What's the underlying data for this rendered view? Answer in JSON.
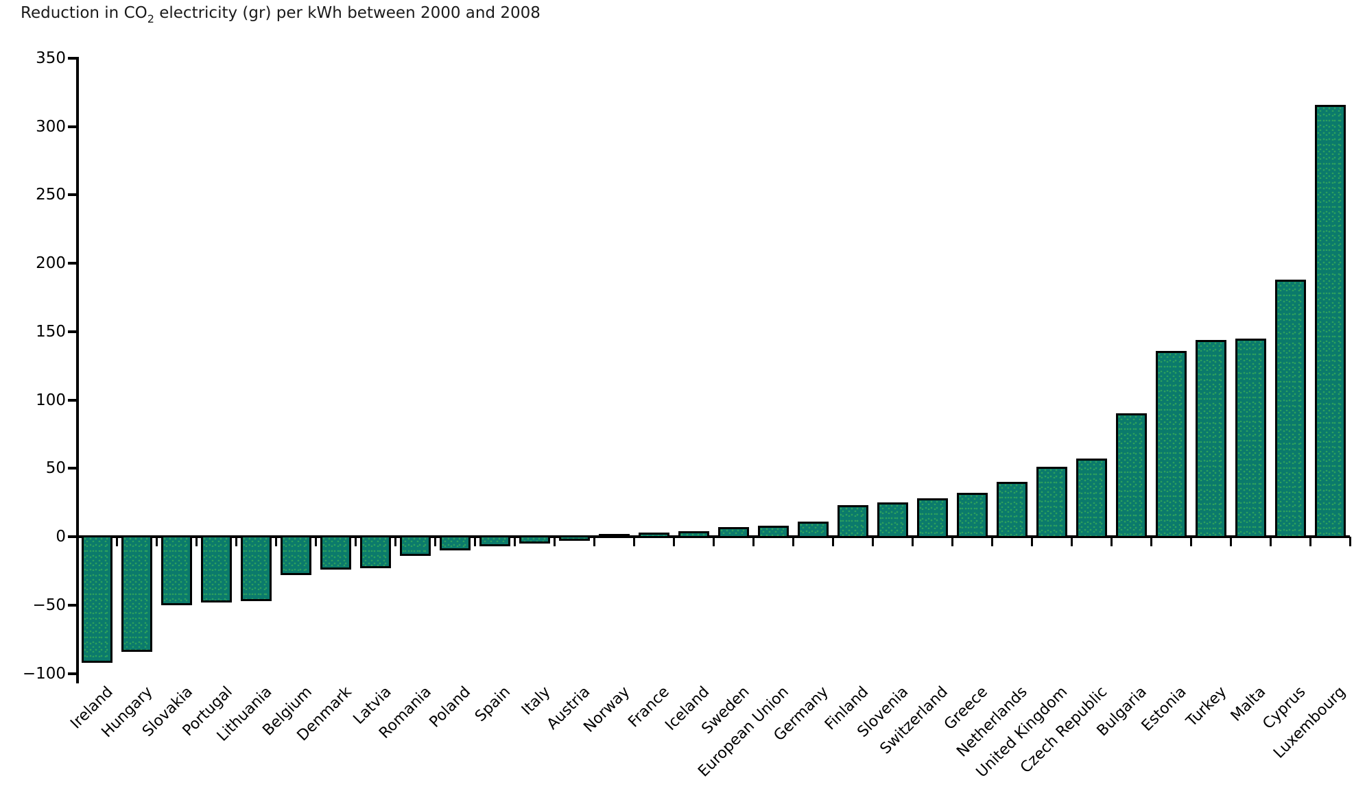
{
  "page": {
    "background": "#ffffff"
  },
  "title": {
    "pre": "Reduction in CO",
    "sub": "2",
    "post": " electricity (gr) per kWh between 2000 and 2008"
  },
  "chart_data": {
    "type": "bar",
    "title": "Reduction in CO2 electricity (gr) per kWh between 2000 and 2008",
    "categories": [
      "Ireland",
      "Hungary",
      "Slovakia",
      "Portugal",
      "Lithuania",
      "Belgium",
      "Denmark",
      "Latvia",
      "Romania",
      "Poland",
      "Spain",
      "Italy",
      "Austria",
      "Norway",
      "France",
      "Iceland",
      "Sweden",
      "European Union",
      "Germany",
      "Finland",
      "Slovenia",
      "Switzerland",
      "Greece",
      "Netherlands",
      "United Kingdom",
      "Czech Republic",
      "Bulgaria",
      "Estonia",
      "Turkey",
      "Malta",
      "Cyprus",
      "Luxembourg"
    ],
    "values": [
      -90,
      -82,
      -48,
      -46,
      -45,
      -26,
      -22,
      -21,
      -12,
      -8,
      -5,
      -3,
      -1,
      0,
      1,
      2,
      5,
      6,
      9,
      21,
      23,
      26,
      30,
      38,
      49,
      55,
      88,
      134,
      142,
      143,
      186,
      314
    ],
    "xlabel": "",
    "ylabel": "",
    "ylim": [
      -100,
      350
    ],
    "yticks": [
      350,
      300,
      250,
      200,
      150,
      100,
      50,
      0,
      -50,
      -100
    ],
    "grid": false,
    "legend": "none",
    "bar_fill_color": "#0b7a6c",
    "bar_dot_color": "#2da05d",
    "bar_border_color": "#000000",
    "axis_color": "#000000",
    "text_color": "#000000"
  }
}
